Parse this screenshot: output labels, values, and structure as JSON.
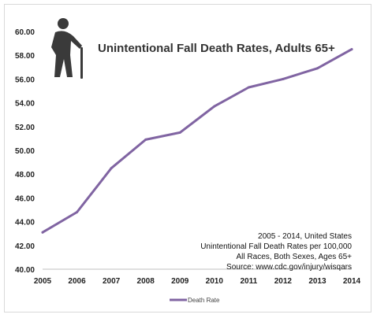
{
  "chart_data": {
    "type": "line",
    "title": "Unintentional Fall Death Rates, Adults 65+",
    "xlabel": "",
    "ylabel": "",
    "categories": [
      "2005",
      "2006",
      "2007",
      "2008",
      "2009",
      "2010",
      "2011",
      "2012",
      "2013",
      "2014"
    ],
    "series": [
      {
        "name": "Death Rate",
        "values": [
          43.1,
          44.8,
          48.5,
          50.9,
          51.5,
          53.7,
          55.3,
          56.0,
          56.9,
          58.5
        ]
      }
    ],
    "ylim": [
      40,
      60
    ],
    "yticks": [
      "40.00",
      "42.00",
      "44.00",
      "46.00",
      "48.00",
      "50.00",
      "52.00",
      "54.00",
      "56.00",
      "58.00",
      "60.00"
    ],
    "grid": false,
    "legend": "bottom",
    "annotations": [
      "2005 - 2014, United States",
      "Unintentional Fall Death Rates per 100,000",
      "All Races, Both Sexes, Ages 65+",
      "Source: www.cdc.gov/injury/wisqars"
    ],
    "colors": {
      "line": "#8064a2",
      "icon": "#3a3a3a",
      "axis": "#bfbfbf"
    }
  },
  "icon": "elderly-person-with-cane-icon"
}
